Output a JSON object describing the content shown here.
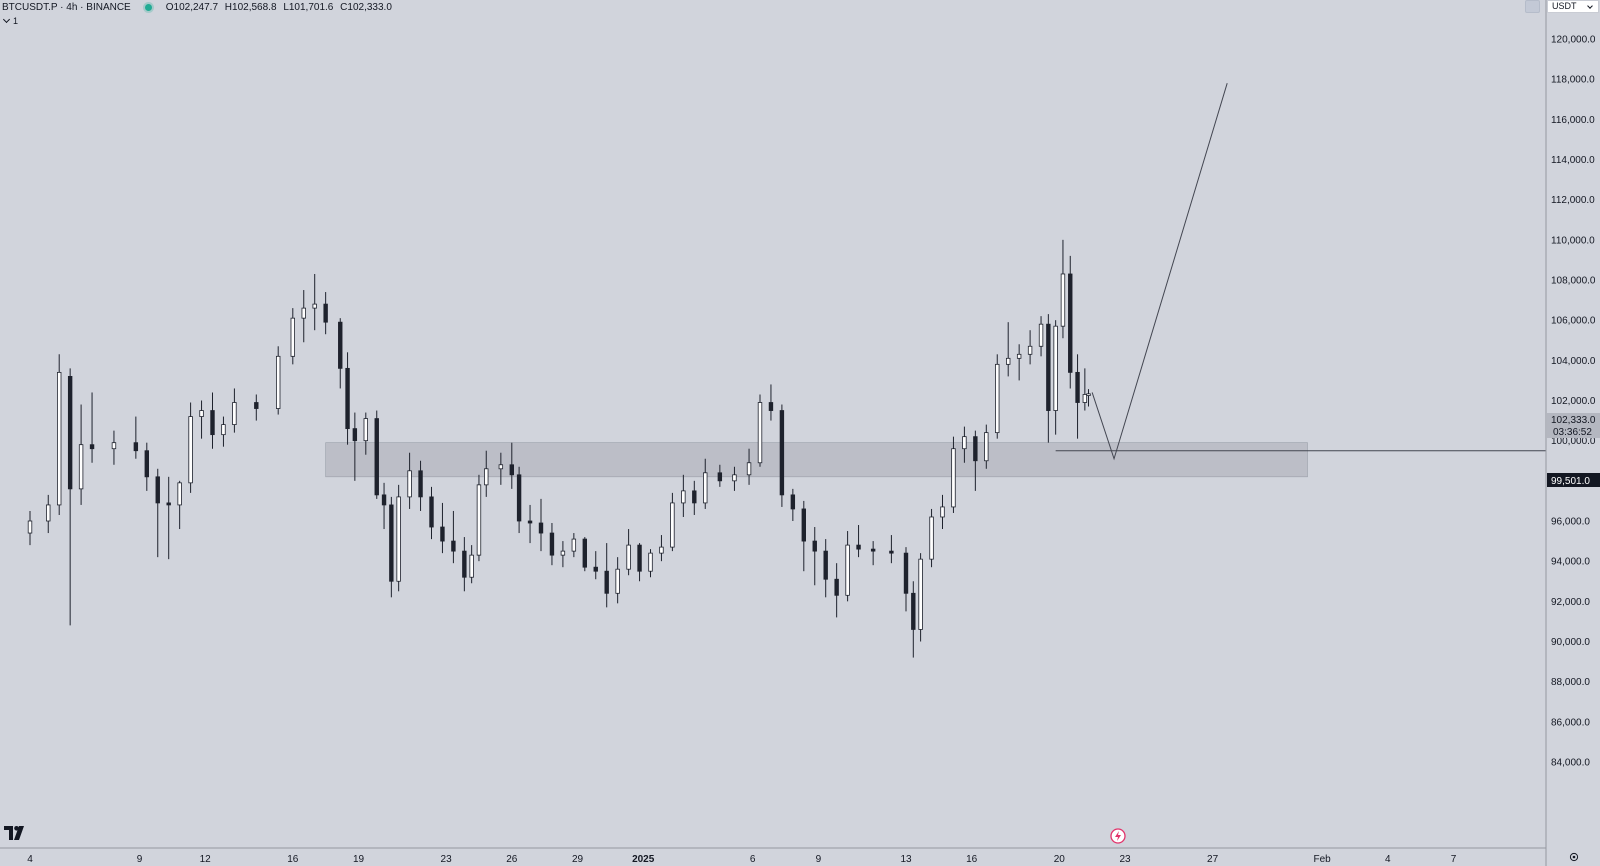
{
  "legend": {
    "symbol": "BTCUSDT.P · 4h · BINANCE",
    "open_label": "O",
    "open": "102,247.7",
    "high_label": "H",
    "high": "102,568.8",
    "low_label": "L",
    "low": "101,701.6",
    "close_label": "C",
    "close": "102,333.0",
    "status_color": "#22ab94"
  },
  "collapse": {
    "count": "1"
  },
  "currency": {
    "label": "USDT"
  },
  "icons": {
    "logo": "tradingview-logo-icon",
    "settings": "gear-icon",
    "replay": "lightning-icon",
    "collapse": "chevron-down-icon",
    "currency": "chevron-down-icon"
  },
  "price_labels": {
    "current": "102,333.0",
    "countdown": "03:36:52",
    "line": "99,501.0"
  },
  "chart_data": {
    "type": "candlestick",
    "symbol": "BTCUSDT.P",
    "interval": "4h",
    "exchange": "BINANCE",
    "y_axis": {
      "range": [
        82000,
        122000
      ],
      "ticks": [
        84000,
        86000,
        88000,
        90000,
        92000,
        94000,
        96000,
        98000,
        100000,
        102000,
        104000,
        106000,
        108000,
        110000,
        112000,
        114000,
        116000,
        118000,
        120000
      ],
      "tick_labels": [
        "84,000.0",
        "86,000.0",
        "88,000.0",
        "90,000.0",
        "92,000.0",
        "94,000.0",
        "96,000.0",
        "98,000.0",
        "100,000.0",
        "102,000.0",
        "104,000.0",
        "106,000.0",
        "108,000.0",
        "110,000.0",
        "112,000.0",
        "114,000.0",
        "116,000.0",
        "118,000.0",
        "120,000.0"
      ]
    },
    "x_axis": {
      "range": [
        "2024-12-03T20:00",
        "2025-02-09T08:00"
      ],
      "ticks": [
        {
          "date": "2024-12-04T00:00",
          "label": "4"
        },
        {
          "date": "2024-12-09T00:00",
          "label": "9"
        },
        {
          "date": "2024-12-12T00:00",
          "label": "12"
        },
        {
          "date": "2024-12-16T00:00",
          "label": "16"
        },
        {
          "date": "2024-12-19T00:00",
          "label": "19"
        },
        {
          "date": "2024-12-23T00:00",
          "label": "23"
        },
        {
          "date": "2024-12-26T00:00",
          "label": "26"
        },
        {
          "date": "2024-12-29T00:00",
          "label": "29"
        },
        {
          "date": "2025-01-01T00:00",
          "label": "2025",
          "bold": true
        },
        {
          "date": "2025-01-06T00:00",
          "label": "6"
        },
        {
          "date": "2025-01-09T00:00",
          "label": "9"
        },
        {
          "date": "2025-01-13T00:00",
          "label": "13"
        },
        {
          "date": "2025-01-16T00:00",
          "label": "16"
        },
        {
          "date": "2025-01-20T00:00",
          "label": "20"
        },
        {
          "date": "2025-01-23T00:00",
          "label": "23"
        },
        {
          "date": "2025-01-27T00:00",
          "label": "27"
        },
        {
          "date": "2025-02-01T00:00",
          "label": "Feb"
        },
        {
          "date": "2025-02-04T00:00",
          "label": "4"
        },
        {
          "date": "2025-02-07T00:00",
          "label": "7"
        }
      ]
    },
    "candles": [
      {
        "t": "2024-12-04T00:00",
        "o": 95400,
        "h": 96500,
        "l": 94800,
        "c": 96000
      },
      {
        "t": "2024-12-04T20:00",
        "o": 96000,
        "h": 97300,
        "l": 95400,
        "c": 96800
      },
      {
        "t": "2024-12-05T08:00",
        "o": 96800,
        "h": 104300,
        "l": 96300,
        "c": 103400
      },
      {
        "t": "2024-12-05T20:00",
        "o": 103200,
        "h": 103600,
        "l": 90800,
        "c": 97600
      },
      {
        "t": "2024-12-06T08:00",
        "o": 97600,
        "h": 101800,
        "l": 96800,
        "c": 99800
      },
      {
        "t": "2024-12-06T20:00",
        "o": 99800,
        "h": 102400,
        "l": 98900,
        "c": 99600
      },
      {
        "t": "2024-12-07T20:00",
        "o": 99600,
        "h": 100500,
        "l": 98800,
        "c": 99900
      },
      {
        "t": "2024-12-08T20:00",
        "o": 99900,
        "h": 101200,
        "l": 99100,
        "c": 99500
      },
      {
        "t": "2024-12-09T08:00",
        "o": 99500,
        "h": 99900,
        "l": 97500,
        "c": 98200
      },
      {
        "t": "2024-12-09T20:00",
        "o": 98200,
        "h": 98600,
        "l": 94200,
        "c": 96900
      },
      {
        "t": "2024-12-10T08:00",
        "o": 96900,
        "h": 98200,
        "l": 94100,
        "c": 96800
      },
      {
        "t": "2024-12-10T20:00",
        "o": 96800,
        "h": 98000,
        "l": 95600,
        "c": 97900
      },
      {
        "t": "2024-12-11T08:00",
        "o": 97900,
        "h": 101900,
        "l": 97400,
        "c": 101200
      },
      {
        "t": "2024-12-11T20:00",
        "o": 101200,
        "h": 102000,
        "l": 100100,
        "c": 101500
      },
      {
        "t": "2024-12-12T08:00",
        "o": 101500,
        "h": 102400,
        "l": 99600,
        "c": 100300
      },
      {
        "t": "2024-12-12T20:00",
        "o": 100300,
        "h": 101200,
        "l": 99700,
        "c": 100800
      },
      {
        "t": "2024-12-13T08:00",
        "o": 100800,
        "h": 102600,
        "l": 100400,
        "c": 101900
      },
      {
        "t": "2024-12-14T08:00",
        "o": 101900,
        "h": 102300,
        "l": 101000,
        "c": 101600
      },
      {
        "t": "2024-12-15T08:00",
        "o": 101600,
        "h": 104700,
        "l": 101300,
        "c": 104200
      },
      {
        "t": "2024-12-16T00:00",
        "o": 104200,
        "h": 106600,
        "l": 103800,
        "c": 106100
      },
      {
        "t": "2024-12-16T12:00",
        "o": 106100,
        "h": 107500,
        "l": 104900,
        "c": 106600
      },
      {
        "t": "2024-12-17T00:00",
        "o": 106600,
        "h": 108300,
        "l": 105500,
        "c": 106800
      },
      {
        "t": "2024-12-17T12:00",
        "o": 106800,
        "h": 107400,
        "l": 105300,
        "c": 105900
      },
      {
        "t": "2024-12-18T04:00",
        "o": 105900,
        "h": 106100,
        "l": 102600,
        "c": 103600
      },
      {
        "t": "2024-12-18T12:00",
        "o": 103600,
        "h": 104400,
        "l": 99800,
        "c": 100600
      },
      {
        "t": "2024-12-18T20:00",
        "o": 100600,
        "h": 101400,
        "l": 98000,
        "c": 100000
      },
      {
        "t": "2024-12-19T08:00",
        "o": 100000,
        "h": 101400,
        "l": 99300,
        "c": 101100
      },
      {
        "t": "2024-12-19T20:00",
        "o": 101100,
        "h": 101500,
        "l": 97100,
        "c": 97300
      },
      {
        "t": "2024-12-20T04:00",
        "o": 97300,
        "h": 97900,
        "l": 95600,
        "c": 96800
      },
      {
        "t": "2024-12-20T12:00",
        "o": 96800,
        "h": 97200,
        "l": 92200,
        "c": 93000
      },
      {
        "t": "2024-12-20T20:00",
        "o": 93000,
        "h": 97800,
        "l": 92500,
        "c": 97200
      },
      {
        "t": "2024-12-21T08:00",
        "o": 97200,
        "h": 99400,
        "l": 96600,
        "c": 98500
      },
      {
        "t": "2024-12-21T20:00",
        "o": 98500,
        "h": 99000,
        "l": 96500,
        "c": 97200
      },
      {
        "t": "2024-12-22T08:00",
        "o": 97200,
        "h": 97700,
        "l": 95100,
        "c": 95700
      },
      {
        "t": "2024-12-22T20:00",
        "o": 95700,
        "h": 96900,
        "l": 94400,
        "c": 95000
      },
      {
        "t": "2024-12-23T08:00",
        "o": 95000,
        "h": 96500,
        "l": 93900,
        "c": 94500
      },
      {
        "t": "2024-12-23T20:00",
        "o": 94500,
        "h": 95200,
        "l": 92500,
        "c": 93200
      },
      {
        "t": "2024-12-24T04:00",
        "o": 93200,
        "h": 94800,
        "l": 92900,
        "c": 94300
      },
      {
        "t": "2024-12-24T12:00",
        "o": 94300,
        "h": 98300,
        "l": 94000,
        "c": 97800
      },
      {
        "t": "2024-12-24T20:00",
        "o": 97800,
        "h": 99500,
        "l": 97200,
        "c": 98600
      },
      {
        "t": "2024-12-25T12:00",
        "o": 98600,
        "h": 99400,
        "l": 97800,
        "c": 98800
      },
      {
        "t": "2024-12-26T00:00",
        "o": 98800,
        "h": 99900,
        "l": 97600,
        "c": 98300
      },
      {
        "t": "2024-12-26T08:00",
        "o": 98300,
        "h": 98700,
        "l": 95400,
        "c": 96000
      },
      {
        "t": "2024-12-26T20:00",
        "o": 96000,
        "h": 96800,
        "l": 94900,
        "c": 95900
      },
      {
        "t": "2024-12-27T08:00",
        "o": 95900,
        "h": 97100,
        "l": 94500,
        "c": 95400
      },
      {
        "t": "2024-12-27T20:00",
        "o": 95400,
        "h": 95900,
        "l": 93800,
        "c": 94300
      },
      {
        "t": "2024-12-28T08:00",
        "o": 94300,
        "h": 95000,
        "l": 93700,
        "c": 94500
      },
      {
        "t": "2024-12-28T20:00",
        "o": 94500,
        "h": 95400,
        "l": 94200,
        "c": 95100
      },
      {
        "t": "2024-12-29T08:00",
        "o": 95100,
        "h": 95200,
        "l": 93500,
        "c": 93700
      },
      {
        "t": "2024-12-29T20:00",
        "o": 93700,
        "h": 94500,
        "l": 93100,
        "c": 93500
      },
      {
        "t": "2024-12-30T08:00",
        "o": 93500,
        "h": 94900,
        "l": 91700,
        "c": 92400
      },
      {
        "t": "2024-12-30T20:00",
        "o": 92400,
        "h": 94200,
        "l": 91900,
        "c": 93600
      },
      {
        "t": "2024-12-31T08:00",
        "o": 93600,
        "h": 95600,
        "l": 93300,
        "c": 94800
      },
      {
        "t": "2024-12-31T20:00",
        "o": 94800,
        "h": 94900,
        "l": 93000,
        "c": 93500
      },
      {
        "t": "2025-01-01T08:00",
        "o": 93500,
        "h": 94600,
        "l": 93200,
        "c": 94400
      },
      {
        "t": "2025-01-01T20:00",
        "o": 94400,
        "h": 95300,
        "l": 94000,
        "c": 94700
      },
      {
        "t": "2025-01-02T08:00",
        "o": 94700,
        "h": 97400,
        "l": 94500,
        "c": 96900
      },
      {
        "t": "2025-01-02T20:00",
        "o": 96900,
        "h": 98300,
        "l": 96200,
        "c": 97500
      },
      {
        "t": "2025-01-03T08:00",
        "o": 97500,
        "h": 98000,
        "l": 96300,
        "c": 96900
      },
      {
        "t": "2025-01-03T20:00",
        "o": 96900,
        "h": 99100,
        "l": 96600,
        "c": 98400
      },
      {
        "t": "2025-01-04T12:00",
        "o": 98400,
        "h": 98800,
        "l": 97700,
        "c": 98000
      },
      {
        "t": "2025-01-05T04:00",
        "o": 98000,
        "h": 98700,
        "l": 97500,
        "c": 98300
      },
      {
        "t": "2025-01-05T20:00",
        "o": 98300,
        "h": 99600,
        "l": 97800,
        "c": 98900
      },
      {
        "t": "2025-01-06T08:00",
        "o": 98900,
        "h": 102300,
        "l": 98700,
        "c": 101900
      },
      {
        "t": "2025-01-06T20:00",
        "o": 101900,
        "h": 102800,
        "l": 101000,
        "c": 101500
      },
      {
        "t": "2025-01-07T08:00",
        "o": 101500,
        "h": 101800,
        "l": 96700,
        "c": 97300
      },
      {
        "t": "2025-01-07T20:00",
        "o": 97300,
        "h": 97600,
        "l": 96000,
        "c": 96600
      },
      {
        "t": "2025-01-08T08:00",
        "o": 96600,
        "h": 97000,
        "l": 93500,
        "c": 95000
      },
      {
        "t": "2025-01-08T20:00",
        "o": 95000,
        "h": 95700,
        "l": 92800,
        "c": 94500
      },
      {
        "t": "2025-01-09T08:00",
        "o": 94500,
        "h": 95100,
        "l": 92200,
        "c": 93100
      },
      {
        "t": "2025-01-09T20:00",
        "o": 93100,
        "h": 93900,
        "l": 91200,
        "c": 92300
      },
      {
        "t": "2025-01-10T08:00",
        "o": 92300,
        "h": 95500,
        "l": 92000,
        "c": 94800
      },
      {
        "t": "2025-01-10T20:00",
        "o": 94800,
        "h": 95800,
        "l": 94200,
        "c": 94600
      },
      {
        "t": "2025-01-11T12:00",
        "o": 94600,
        "h": 95000,
        "l": 93800,
        "c": 94500
      },
      {
        "t": "2025-01-12T08:00",
        "o": 94500,
        "h": 95300,
        "l": 93900,
        "c": 94400
      },
      {
        "t": "2025-01-13T00:00",
        "o": 94400,
        "h": 94700,
        "l": 91500,
        "c": 92400
      },
      {
        "t": "2025-01-13T08:00",
        "o": 92400,
        "h": 93000,
        "l": 89200,
        "c": 90600
      },
      {
        "t": "2025-01-13T16:00",
        "o": 90600,
        "h": 94400,
        "l": 90000,
        "c": 94100
      },
      {
        "t": "2025-01-14T04:00",
        "o": 94100,
        "h": 96600,
        "l": 93700,
        "c": 96200
      },
      {
        "t": "2025-01-14T16:00",
        "o": 96200,
        "h": 97300,
        "l": 95600,
        "c": 96700
      },
      {
        "t": "2025-01-15T04:00",
        "o": 96700,
        "h": 100200,
        "l": 96400,
        "c": 99600
      },
      {
        "t": "2025-01-15T16:00",
        "o": 99600,
        "h": 100700,
        "l": 98900,
        "c": 100200
      },
      {
        "t": "2025-01-16T04:00",
        "o": 100200,
        "h": 100500,
        "l": 97500,
        "c": 99000
      },
      {
        "t": "2025-01-16T16:00",
        "o": 99000,
        "h": 100800,
        "l": 98600,
        "c": 100400
      },
      {
        "t": "2025-01-17T04:00",
        "o": 100400,
        "h": 104300,
        "l": 100100,
        "c": 103800
      },
      {
        "t": "2025-01-17T16:00",
        "o": 103800,
        "h": 105900,
        "l": 103200,
        "c": 104100
      },
      {
        "t": "2025-01-18T04:00",
        "o": 104100,
        "h": 104800,
        "l": 103000,
        "c": 104300
      },
      {
        "t": "2025-01-18T16:00",
        "o": 104300,
        "h": 105500,
        "l": 103800,
        "c": 104700
      },
      {
        "t": "2025-01-19T04:00",
        "o": 104700,
        "h": 106200,
        "l": 104200,
        "c": 105800
      },
      {
        "t": "2025-01-19T12:00",
        "o": 105800,
        "h": 106300,
        "l": 99900,
        "c": 101500
      },
      {
        "t": "2025-01-19T20:00",
        "o": 101500,
        "h": 106000,
        "l": 100300,
        "c": 105700
      },
      {
        "t": "2025-01-20T04:00",
        "o": 105700,
        "h": 110000,
        "l": 105100,
        "c": 108300
      },
      {
        "t": "2025-01-20T12:00",
        "o": 108300,
        "h": 109200,
        "l": 102600,
        "c": 103400
      },
      {
        "t": "2025-01-20T20:00",
        "o": 103400,
        "h": 104300,
        "l": 100100,
        "c": 101900
      },
      {
        "t": "2025-01-21T04:00",
        "o": 101900,
        "h": 103600,
        "l": 101500,
        "c": 102300
      },
      {
        "t": "2025-01-21T08:00",
        "o": 102247.7,
        "h": 102568.8,
        "l": 101701.6,
        "c": 102333.0
      }
    ],
    "annotations": {
      "zone": {
        "x_start": "2024-12-17T12:00",
        "x_end": "2025-01-31T08:00",
        "y_low": 98200,
        "y_high": 99900
      },
      "horizontal_line": {
        "x_start": "2025-01-19T20:00",
        "price": 99501.0
      },
      "projection_path": [
        {
          "t": "2025-01-21T12:00",
          "p": 102400
        },
        {
          "t": "2025-01-22T12:00",
          "p": 99100
        },
        {
          "t": "2025-01-27T16:00",
          "p": 117800
        }
      ]
    },
    "colors": {
      "candle_up": "#ffffff",
      "candle_down": "#1e222d",
      "wick": "#1e222d",
      "zone_fill": "#b4b7c0",
      "line": "#434651",
      "background": "#d1d4dc"
    }
  }
}
